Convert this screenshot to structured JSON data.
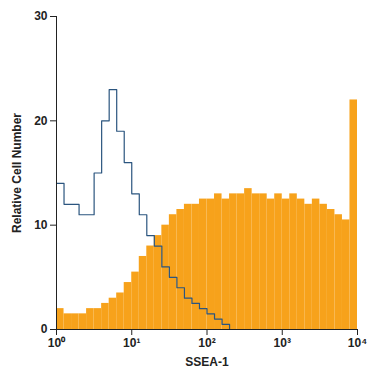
{
  "chart_data": {
    "type": "histogram",
    "x_label": "SSEA-1",
    "y_label": "Relative Cell Number",
    "log": "x",
    "xlim": [
      1,
      10000
    ],
    "ylim": [
      0,
      30
    ],
    "xticks": [
      {
        "value": 1,
        "label": "10⁰"
      },
      {
        "value": 10,
        "label": "10¹"
      },
      {
        "value": 100,
        "label": "10²"
      },
      {
        "value": 1000,
        "label": "10³"
      },
      {
        "value": 10000,
        "label": "10⁴"
      }
    ],
    "yticks": [
      0,
      10,
      20,
      30
    ],
    "bins": [
      1,
      1.259,
      1.585,
      1.995,
      2.512,
      3.162,
      3.981,
      5.012,
      6.31,
      7.943,
      10,
      12.59,
      15.85,
      19.95,
      25.12,
      31.62,
      39.81,
      50.12,
      63.1,
      79.43,
      100,
      125.9,
      158.5,
      199.5,
      251.2,
      316.2,
      398.1,
      501.2,
      631,
      794.3,
      1000,
      1259,
      1585,
      1995,
      2512,
      3162,
      3981,
      5012,
      6310,
      7943,
      10000
    ],
    "series": [
      {
        "type": "bar",
        "color": "#f7a21b",
        "values": [
          2,
          1.5,
          1.5,
          1.5,
          2,
          2,
          2.5,
          3,
          3.5,
          4.5,
          5.5,
          7,
          8,
          9,
          10,
          11,
          11.5,
          12,
          12,
          12.5,
          12.5,
          13,
          12.5,
          13,
          13,
          13.5,
          13,
          13,
          12.5,
          13,
          12.5,
          13,
          12.5,
          12,
          12.5,
          12,
          11.5,
          11,
          10.5,
          22
        ]
      },
      {
        "type": "line",
        "color": "#2b557f",
        "values": [
          14,
          12,
          12,
          11,
          11,
          15,
          20,
          23,
          19,
          16,
          13,
          11,
          9,
          8,
          6,
          5,
          4,
          3,
          2.5,
          2,
          1.5,
          1,
          0.5,
          0,
          0,
          0,
          0,
          0,
          0,
          0,
          0,
          0,
          0,
          0,
          0,
          0,
          0,
          0,
          0,
          0
        ]
      }
    ]
  }
}
